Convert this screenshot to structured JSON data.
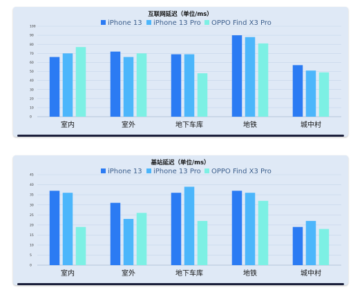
{
  "colors": {
    "s1": "#2b7bf3",
    "s2": "#4cb6fb",
    "s3": "#7df0e4"
  },
  "chart_data": [
    {
      "type": "bar",
      "title": "互联网延迟（单位/ms）",
      "categories": [
        "室内",
        "室外",
        "地下车库",
        "地铁",
        "城中村"
      ],
      "series": [
        {
          "name": "iPhone 13",
          "values": [
            66,
            72,
            69,
            90,
            57
          ]
        },
        {
          "name": "iPhone 13 Pro",
          "values": [
            70,
            66,
            69,
            88,
            51
          ]
        },
        {
          "name": "OPPO Find X3 Pro",
          "values": [
            77,
            70,
            48,
            81,
            49
          ]
        }
      ],
      "ylim": [
        0,
        100
      ],
      "yticks": [
        0,
        10,
        20,
        30,
        40,
        50,
        60,
        70,
        80,
        90,
        100
      ],
      "grid": true,
      "legend": "top-center"
    },
    {
      "type": "bar",
      "title": "基站延迟（单位/ms）",
      "categories": [
        "室内",
        "室外",
        "地下车库",
        "地铁",
        "城中村"
      ],
      "series": [
        {
          "name": "iPhone 13",
          "values": [
            37,
            31,
            36,
            37,
            19
          ]
        },
        {
          "name": "iPhone 13 Pro",
          "values": [
            36,
            23,
            39,
            36,
            22
          ]
        },
        {
          "name": "OPPO Find X3 Pro",
          "values": [
            19,
            26,
            22,
            32,
            18
          ]
        }
      ],
      "ylim": [
        0,
        45
      ],
      "yticks": [
        0,
        5,
        10,
        15,
        20,
        25,
        30,
        35,
        40,
        45
      ],
      "grid": true,
      "legend": "top-center"
    }
  ]
}
